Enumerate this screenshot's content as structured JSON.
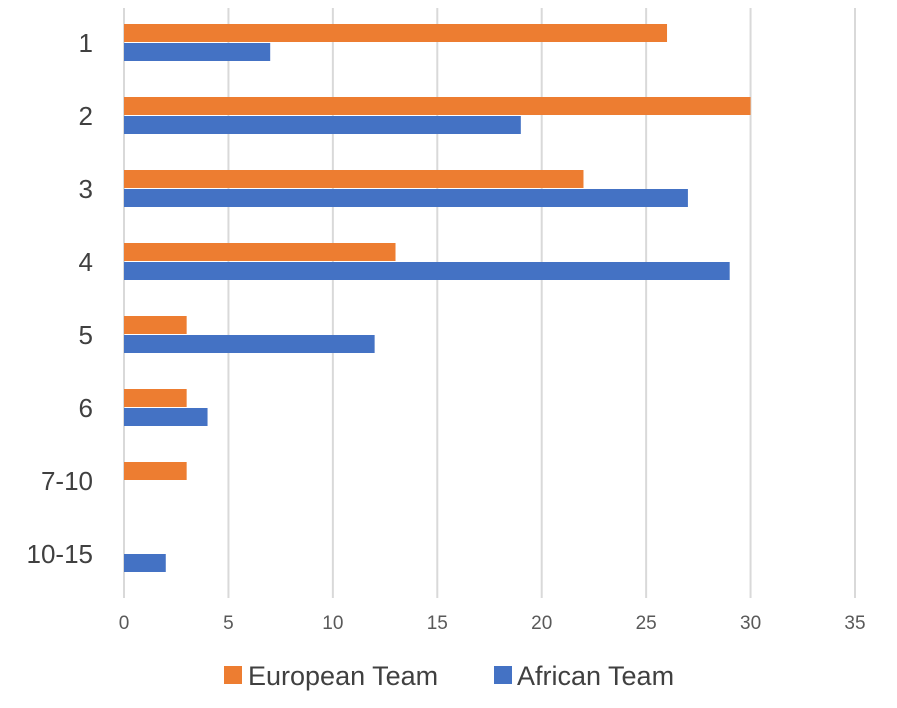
{
  "chart_data": {
    "type": "bar",
    "orientation": "horizontal",
    "categories": [
      "1",
      "2",
      "3",
      "4",
      "5",
      "6",
      "7-10",
      "10-15"
    ],
    "series": [
      {
        "name": "European Team",
        "color": "#ED7D31",
        "values": [
          26,
          30,
          22,
          13,
          3,
          3,
          3,
          null
        ]
      },
      {
        "name": "African Team",
        "color": "#4472C4",
        "values": [
          7,
          19,
          27,
          29,
          12,
          4,
          null,
          2
        ]
      }
    ],
    "x_ticks": [
      "0",
      "5",
      "10",
      "15",
      "20",
      "25",
      "30",
      "35"
    ],
    "xlim": [
      0,
      35
    ],
    "grid": "vertical",
    "legend_position": "bottom"
  }
}
